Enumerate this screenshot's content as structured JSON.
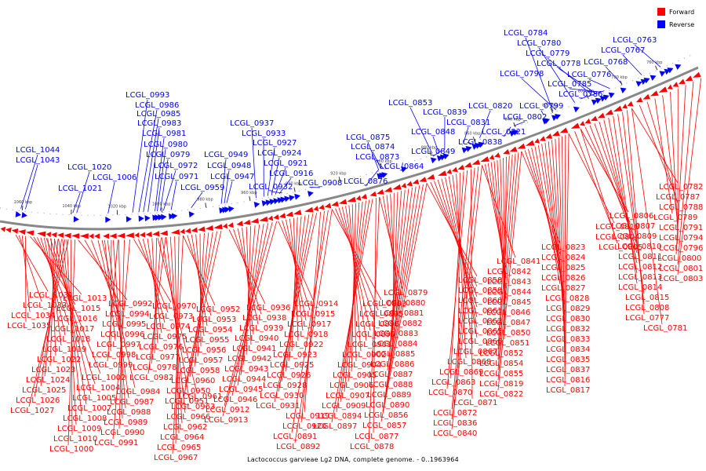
{
  "caption": "Lactococcus garvieae Lg2 DNA, complete genome. - 0..1963964",
  "legend": [
    {
      "label": "Forward",
      "color": "#ff0000"
    },
    {
      "label": "Reverse",
      "color": "#0000ff"
    }
  ],
  "colors": {
    "forward": "#ff0000",
    "reverse": "#0000ff",
    "backbone": "#888888"
  },
  "kbp_ticks": [
    "1060 kbp",
    "1040 kbp",
    "1020 kbp",
    "1000 kbp",
    "980 kbp",
    "960 kbp",
    "940 kbp",
    "920 kbp",
    "900 kbp",
    "880 kbp",
    "860 kbp",
    "840 kbp",
    "820 kbp",
    "800 kbp",
    "780 kbp",
    "760 kbp"
  ],
  "reverse_genes": [
    "LCGL_1044",
    "LCGL_1043",
    "LCGL_1020",
    "LCGL_1021",
    "LCGL_1006",
    "LCGL_0993",
    "LCGL_0986",
    "LCGL_0985",
    "LCGL_0983",
    "LCGL_0981",
    "LCGL_0980",
    "LCGL_0979",
    "LCGL_0972",
    "LCGL_0971",
    "LCGL_0959",
    "LCGL_0949",
    "LCGL_0948",
    "LCGL_0947",
    "LCGL_0937",
    "LCGL_0933",
    "LCGL_0927",
    "LCGL_0924",
    "LCGL_0921",
    "LCGL_0916",
    "LCGL_0932",
    "LCGL_0908",
    "LCGL_0875",
    "LCGL_0874",
    "LCGL_0873",
    "LCGL_0876",
    "LCGL_0864",
    "LCGL_0853",
    "LCGL_0848",
    "LCGL_0849",
    "LCGL_0839",
    "LCGL_0831",
    "LCGL_0838",
    "LCGL_0820",
    "LCGL_0821",
    "LCGL_0802",
    "LCGL_0799",
    "LCGL_0784",
    "LCGL_0780",
    "LCGL_0779",
    "LCGL_0778",
    "LCGL_0798",
    "LCGL_0785",
    "LCGL_0786",
    "LCGL_0776",
    "LCGL_0768",
    "LCGL_0767",
    "LCGL_0763"
  ],
  "forward_genes": [
    "LCGL_1031",
    "LCGL_1033",
    "LCGL_1034",
    "LCGL_1035",
    "LCGL_1013",
    "LCGL_1015",
    "LCGL_1016",
    "LCGL_1017",
    "LCGL_1018",
    "LCGL_1019",
    "LCGL_1022",
    "LCGL_1023",
    "LCGL_1024",
    "LCGL_1025",
    "LCGL_1026",
    "LCGL_1027",
    "LCGL_1002",
    "LCGL_1004",
    "LCGL_1005",
    "LCGL_1007",
    "LCGL_1008",
    "LCGL_1009",
    "LCGL_1010",
    "LCGL_1000",
    "LCGL_0992",
    "LCGL_0994",
    "LCGL_0995",
    "LCGL_0996",
    "LCGL_0997",
    "LCGL_0998",
    "LCGL_0999",
    "LCGL_0984",
    "LCGL_0987",
    "LCGL_0988",
    "LCGL_0989",
    "LCGL_0990",
    "LCGL_0991",
    "LCGL_0970",
    "LCGL_0973",
    "LCGL_0974",
    "LCGL_0975",
    "LCGL_0976",
    "LCGL_0977",
    "LCGL_0978",
    "LCGL_0982",
    "LCGL_0961",
    "LCGL_0963",
    "LCGL_0966",
    "LCGL_0962",
    "LCGL_0964",
    "LCGL_0965",
    "LCGL_0967",
    "LCGL_0952",
    "LCGL_0953",
    "LCGL_0954",
    "LCGL_0955",
    "LCGL_0956",
    "LCGL_0957",
    "LCGL_0958",
    "LCGL_0960",
    "LCGL_0950",
    "LCGL_0951",
    "LCGL_0936",
    "LCGL_0938",
    "LCGL_0939",
    "LCGL_0940",
    "LCGL_0941",
    "LCGL_0942",
    "LCGL_0943",
    "LCGL_0944",
    "LCGL_0945",
    "LCGL_0946",
    "LCGL_0912",
    "LCGL_0913",
    "LCGL_0914",
    "LCGL_0915",
    "LCGL_0917",
    "LCGL_0918",
    "LCGL_0922",
    "LCGL_0923",
    "LCGL_0925",
    "LCGL_0926",
    "LCGL_0928",
    "LCGL_0930",
    "LCGL_0931",
    "LCGL_0919",
    "LCGL_0920",
    "LCGL_0891",
    "LCGL_0892",
    "LCGL_0893",
    "LCGL_0895",
    "LCGL_0896",
    "LCGL_0899",
    "LCGL_0901",
    "LCGL_0902",
    "LCGL_0904",
    "LCGL_0905",
    "LCGL_0906",
    "LCGL_0907",
    "LCGL_0909",
    "LCGL_0894",
    "LCGL_0897",
    "LCGL_0877",
    "LCGL_0878",
    "LCGL_0879",
    "LCGL_0880",
    "LCGL_0881",
    "LCGL_0882",
    "LCGL_0883",
    "LCGL_0884",
    "LCGL_0885",
    "LCGL_0886",
    "LCGL_0887",
    "LCGL_0888",
    "LCGL_0889",
    "LCGL_0890",
    "LCGL_0856",
    "LCGL_0857",
    "LCGL_0858",
    "LCGL_0859",
    "LCGL_0860",
    "LCGL_0861",
    "LCGL_0862",
    "LCGL_0865",
    "LCGL_0866",
    "LCGL_0867",
    "LCGL_0868",
    "LCGL_0869",
    "LCGL_0863",
    "LCGL_0870",
    "LCGL_0871",
    "LCGL_0872",
    "LCGL_0836",
    "LCGL_0840",
    "LCGL_0841",
    "LCGL_0842",
    "LCGL_0843",
    "LCGL_0844",
    "LCGL_0845",
    "LCGL_0846",
    "LCGL_0847",
    "LCGL_0850",
    "LCGL_0851",
    "LCGL_0852",
    "LCGL_0854",
    "LCGL_0855",
    "LCGL_0819",
    "LCGL_0822",
    "LCGL_0823",
    "LCGL_0824",
    "LCGL_0825",
    "LCGL_0826",
    "LCGL_0827",
    "LCGL_0828",
    "LCGL_0829",
    "LCGL_0830",
    "LCGL_0832",
    "LCGL_0833",
    "LCGL_0834",
    "LCGL_0835",
    "LCGL_0837",
    "LCGL_0816",
    "LCGL_0817",
    "LCGL_0818",
    "LCGL_0804",
    "LCGL_0805",
    "LCGL_0806",
    "LCGL_0807",
    "LCGL_0809",
    "LCGL_0810",
    "LCGL_0811",
    "LCGL_0812",
    "LCGL_0813",
    "LCGL_0814",
    "LCGL_0815",
    "LCGL_0808",
    "LCGL_0777",
    "LCGL_0781",
    "LCGL_0782",
    "LCGL_0787",
    "LCGL_0788",
    "LCGL_0789",
    "LCGL_0791",
    "LCGL_0794",
    "LCGL_0796",
    "LCGL_0800",
    "LCGL_0801",
    "LCGL_0803"
  ]
}
